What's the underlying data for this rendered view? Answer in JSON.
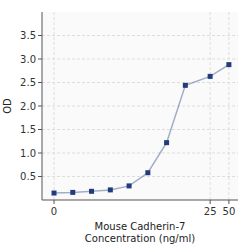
{
  "chart_data": {
    "type": "line",
    "xlabel": "Mouse Cadherin-7\nConcentration (ng/ml)",
    "ylabel": "OD",
    "x": [
      0.078,
      0.156,
      0.312,
      0.625,
      1.25,
      2.5,
      5,
      10,
      25,
      50
    ],
    "values": [
      0.148,
      0.162,
      0.185,
      0.215,
      0.3,
      0.58,
      1.22,
      2.44,
      2.63,
      2.88
    ],
    "color": "#1f3d7a",
    "marker": "square",
    "log": "x",
    "xlim": [
      0.05,
      70
    ],
    "xticks": [
      {
        "value": 0.078,
        "label": "0"
      },
      25,
      50
    ],
    "ylim": [
      0,
      4.0
    ],
    "yticks": [
      0.5,
      {
        "value": 1.0,
        "label": "1.0"
      },
      1.5,
      {
        "value": 2.0,
        "label": "2.0"
      },
      2.5,
      {
        "value": 3.0,
        "label": "3.0"
      },
      3.5
    ],
    "grid": true
  }
}
